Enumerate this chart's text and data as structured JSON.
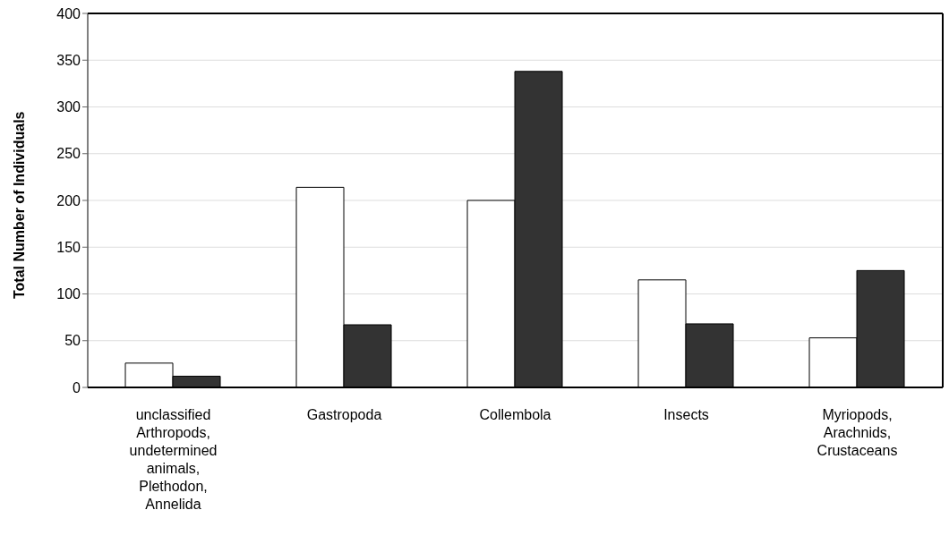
{
  "chart_data": {
    "type": "bar",
    "ylabel": "Total Number of Individuals",
    "categories": [
      "unclassified Arthropods, undetermined animals, Plethodon, Annelida",
      "Gastropoda",
      "Collembola",
      "Insects",
      "Myriopods, Arachnids, Crustaceans"
    ],
    "series": [
      {
        "color": "#ffffff",
        "values": [
          26,
          214,
          200,
          115,
          53
        ]
      },
      {
        "color": "#333333",
        "values": [
          12,
          67,
          338,
          68,
          125
        ]
      }
    ],
    "ylim": [
      0,
      400
    ],
    "yticks": [
      0,
      50,
      100,
      150,
      200,
      250,
      300,
      350,
      400
    ],
    "grid": "y",
    "legend": false
  }
}
